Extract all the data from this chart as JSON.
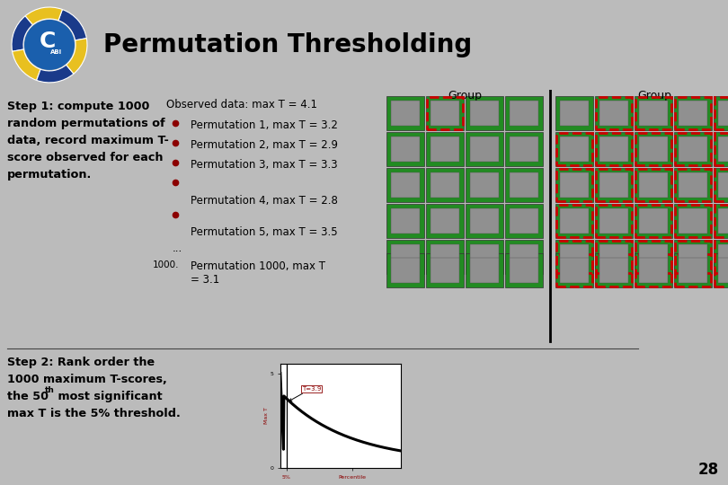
{
  "title": "Permutation Thresholding",
  "title_fontsize": 20,
  "header_bg": "#aaaaaa",
  "body_bg": "#bbbbbb",
  "white_bg": "#ffffff",
  "step1_lines": [
    "Step 1: compute 1000",
    "random permutations of",
    "data, record maximum T-",
    "score observed for each",
    "permutation."
  ],
  "observed_data": "Observed data: max T = 4.1",
  "permutations": [
    "Permutation 1, max T = 3.2",
    "Permutation 2, max T = 2.9",
    "Permutation 3, max T = 3.3",
    "Permutation 4, max T = 2.8",
    "Permutation 5, max T = 3.5"
  ],
  "perm1000_num": "1000.",
  "perm1000_text": "Permutation 1000, max T\n= 3.1",
  "group_label": "Group",
  "page_number": "28",
  "bullet_color": "#8b0000",
  "text_color": "#000000",
  "green_cell": "#228B22",
  "red_border": "#cc0000",
  "graph_bg": "#ffffff",
  "graph_line_color": "#000000",
  "logo_blue_dark": "#1a3a8a",
  "logo_yellow": "#e8c020",
  "logo_blue_mid": "#1a5fad",
  "logo_blue_light": "#2288cc",
  "separator_color": "#444444",
  "step2_line1": "Step 2: Rank order the",
  "step2_line2": "1000 maximum T-scores,",
  "step2_line3a": "the 50",
  "step2_line3b": "th",
  "step2_line3c": " most significant",
  "step2_line4": "max T is the 5% threshold.",
  "graph_annotation": "T=3.9",
  "graph_x_label_5": "5%",
  "graph_x_label_pct": "Percentile",
  "graph_y_label": "Max T"
}
